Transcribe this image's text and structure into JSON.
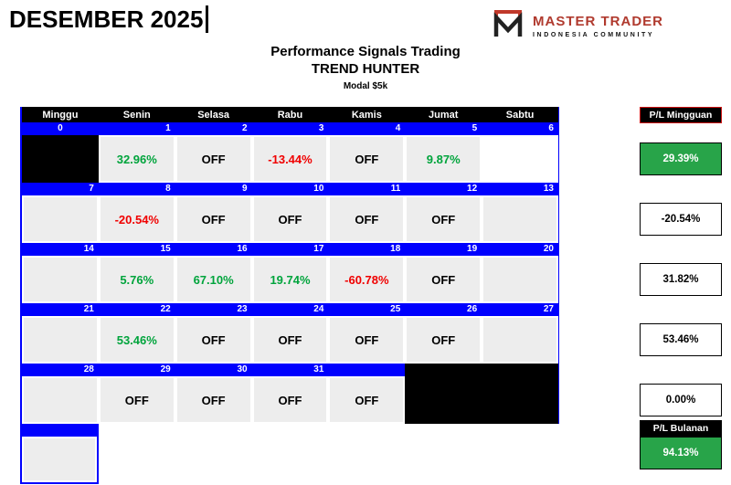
{
  "page": {
    "month_title": "DESEMBER 2025"
  },
  "logo": {
    "brand": "MASTER TRADER",
    "subtitle": "INDONESIA COMMUNITY"
  },
  "heading": {
    "line1": "Performance Signals Trading",
    "line2": "TREND HUNTER",
    "line3": "Modal $5k"
  },
  "calendar": {
    "day_headers": [
      "Minggu",
      "Senin",
      "Selasa",
      "Rabu",
      "Kamis",
      "Jumat",
      "Sabtu"
    ],
    "weeks": [
      {
        "day_numbers": [
          "0",
          "1",
          "2",
          "3",
          "4",
          "5",
          "6"
        ],
        "number_row_fills": [
          "blue",
          "blue",
          "blue",
          "blue",
          "blue",
          "blue",
          "blue"
        ],
        "cells": [
          {
            "text": "",
            "style": "black"
          },
          {
            "text": "32.96%",
            "style": "green"
          },
          {
            "text": "OFF",
            "style": "off"
          },
          {
            "text": "-13.44%",
            "style": "red"
          },
          {
            "text": "OFF",
            "style": "off"
          },
          {
            "text": "9.87%",
            "style": "green"
          },
          {
            "text": "",
            "style": "white"
          }
        ]
      },
      {
        "day_numbers": [
          "7",
          "8",
          "9",
          "10",
          "11",
          "12",
          "13"
        ],
        "number_row_fills": [
          "blue",
          "blue",
          "blue",
          "blue",
          "blue",
          "blue",
          "blue"
        ],
        "cells": [
          {
            "text": "",
            "style": "empty"
          },
          {
            "text": "-20.54%",
            "style": "red"
          },
          {
            "text": "OFF",
            "style": "off"
          },
          {
            "text": "OFF",
            "style": "off"
          },
          {
            "text": "OFF",
            "style": "off"
          },
          {
            "text": "OFF",
            "style": "off"
          },
          {
            "text": "",
            "style": "empty"
          }
        ]
      },
      {
        "day_numbers": [
          "14",
          "15",
          "16",
          "17",
          "18",
          "19",
          "20"
        ],
        "number_row_fills": [
          "blue",
          "blue",
          "blue",
          "blue",
          "blue",
          "blue",
          "blue"
        ],
        "cells": [
          {
            "text": "",
            "style": "empty"
          },
          {
            "text": "5.76%",
            "style": "green"
          },
          {
            "text": "67.10%",
            "style": "green"
          },
          {
            "text": "19.74%",
            "style": "green"
          },
          {
            "text": "-60.78%",
            "style": "red"
          },
          {
            "text": "OFF",
            "style": "off"
          },
          {
            "text": "",
            "style": "empty"
          }
        ]
      },
      {
        "day_numbers": [
          "21",
          "22",
          "23",
          "24",
          "25",
          "26",
          "27"
        ],
        "number_row_fills": [
          "blue",
          "blue",
          "blue",
          "blue",
          "blue",
          "blue",
          "blue"
        ],
        "cells": [
          {
            "text": "",
            "style": "empty"
          },
          {
            "text": "53.46%",
            "style": "green"
          },
          {
            "text": "OFF",
            "style": "off"
          },
          {
            "text": "OFF",
            "style": "off"
          },
          {
            "text": "OFF",
            "style": "off"
          },
          {
            "text": "OFF",
            "style": "off"
          },
          {
            "text": "",
            "style": "empty"
          }
        ]
      },
      {
        "day_numbers": [
          "28",
          "29",
          "30",
          "31",
          "",
          "",
          ""
        ],
        "number_row_fills": [
          "blue",
          "blue",
          "blue",
          "blue",
          "blue",
          "black",
          "black"
        ],
        "cells": [
          {
            "text": "",
            "style": "empty"
          },
          {
            "text": "OFF",
            "style": "off"
          },
          {
            "text": "OFF",
            "style": "off"
          },
          {
            "text": "OFF",
            "style": "off"
          },
          {
            "text": "OFF",
            "style": "off"
          },
          {
            "text": "",
            "style": "black"
          },
          {
            "text": "",
            "style": "black"
          }
        ]
      },
      {
        "partial": true,
        "day_numbers": [
          ""
        ],
        "number_row_fills": [
          "blue"
        ],
        "cells": [
          {
            "text": "",
            "style": "empty"
          }
        ]
      }
    ]
  },
  "summary": {
    "weekly_header": "P/L Mingguan",
    "weekly_values": [
      {
        "text": "29.39%",
        "style": "green-box"
      },
      {
        "text": "-20.54%",
        "style": "white-box"
      },
      {
        "text": "31.82%",
        "style": "white-box"
      },
      {
        "text": "53.46%",
        "style": "white-box"
      },
      {
        "text": "0.00%",
        "style": "white-box"
      }
    ],
    "monthly_header": "P/L Bulanan",
    "monthly_value": {
      "text": "94.13%",
      "style": "green-box"
    }
  },
  "colors": {
    "blue": "#0000fe",
    "cell_gray": "#ededed",
    "green_text": "#00a43c",
    "red_text": "#f00000",
    "green_fill": "#28a449",
    "brand_red": "#b03a2e"
  }
}
